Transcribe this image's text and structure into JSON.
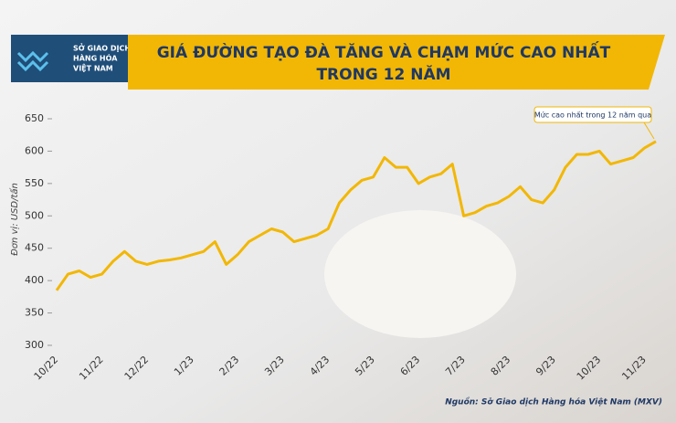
{
  "header": {
    "logo": [
      "SỞ GIAO DỊCH",
      "HÀNG HÓA",
      "VIỆT NAM"
    ]
  },
  "chart_data": {
    "type": "line",
    "title": [
      "GIÁ ĐƯỜNG TẠO ĐÀ TĂNG VÀ CHẠM MỨC CAO NHẤT",
      "TRONG 12 NĂM"
    ],
    "y_label": "Đơn vị: USD/tấn",
    "annotation": "Mức cao nhất trong 12 năm qua",
    "source": "Nguồn: Sở Giao dịch Hàng hóa Việt Nam (MXV)",
    "categories": [
      "10/22",
      null,
      null,
      null,
      "11/22",
      null,
      null,
      null,
      "12/22",
      null,
      null,
      null,
      "1/23",
      null,
      null,
      null,
      "2/23",
      null,
      null,
      null,
      "3/23",
      null,
      null,
      null,
      "4/23",
      null,
      null,
      null,
      "5/23",
      null,
      null,
      null,
      "6/23",
      null,
      null,
      null,
      "7/23",
      null,
      null,
      null,
      "8/23",
      null,
      null,
      null,
      "9/23",
      null,
      null,
      null,
      "10/23",
      null,
      null,
      null,
      "11/23",
      null
    ],
    "series": [
      {
        "name": "Giá đường",
        "color": "#f2b705",
        "values": [
          385,
          410,
          415,
          405,
          410,
          430,
          445,
          430,
          425,
          430,
          432,
          435,
          440,
          445,
          460,
          425,
          440,
          460,
          470,
          480,
          475,
          460,
          465,
          470,
          480,
          520,
          540,
          555,
          560,
          590,
          575,
          575,
          550,
          560,
          565,
          580,
          500,
          505,
          515,
          520,
          530,
          545,
          525,
          520,
          540,
          575,
          595,
          595,
          600,
          580,
          585,
          590,
          605,
          615
        ]
      }
    ],
    "ylim": [
      300,
      650
    ],
    "yticks": [
      300,
      350,
      400,
      450,
      500,
      550,
      600,
      650
    ],
    "grid": false
  }
}
